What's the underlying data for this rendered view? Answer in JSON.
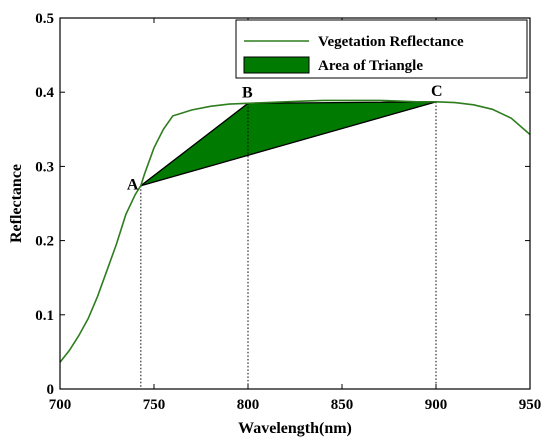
{
  "chart_data": {
    "type": "line",
    "xlabel": "Wavelength(nm)",
    "ylabel": "Reflectance",
    "xlim": [
      700,
      950
    ],
    "ylim": [
      0,
      0.5
    ],
    "x_ticks": [
      700,
      750,
      800,
      850,
      900,
      950
    ],
    "x_tick_labels": [
      "700",
      "750",
      "800",
      "850",
      "900",
      "950"
    ],
    "y_ticks": [
      0,
      0.1,
      0.2,
      0.3,
      0.4,
      0.5
    ],
    "y_tick_labels": [
      "0",
      "0.1",
      "0.2",
      "0.3",
      "0.4",
      "0.5"
    ],
    "grid": false,
    "legend_position": "top-right",
    "series": [
      {
        "name": "Vegetation Reflectance",
        "color": "#2e7d1f",
        "x": [
          700,
          705,
          710,
          715,
          720,
          725,
          730,
          735,
          740,
          743,
          745,
          750,
          755,
          760,
          765,
          770,
          780,
          790,
          800,
          810,
          820,
          830,
          840,
          850,
          860,
          870,
          880,
          890,
          900,
          910,
          920,
          930,
          940,
          950
        ],
        "y": [
          0.036,
          0.052,
          0.072,
          0.095,
          0.125,
          0.16,
          0.195,
          0.235,
          0.262,
          0.274,
          0.29,
          0.325,
          0.35,
          0.368,
          0.372,
          0.376,
          0.381,
          0.384,
          0.385,
          0.386,
          0.387,
          0.388,
          0.389,
          0.389,
          0.389,
          0.389,
          0.388,
          0.387,
          0.387,
          0.386,
          0.383,
          0.377,
          0.365,
          0.343
        ]
      }
    ],
    "triangle": {
      "name": "Area of Triangle",
      "color": "#007a00",
      "points": [
        {
          "label": "A",
          "x": 743,
          "y": 0.274
        },
        {
          "label": "B",
          "x": 800,
          "y": 0.385
        },
        {
          "label": "C",
          "x": 900,
          "y": 0.387
        }
      ]
    }
  }
}
